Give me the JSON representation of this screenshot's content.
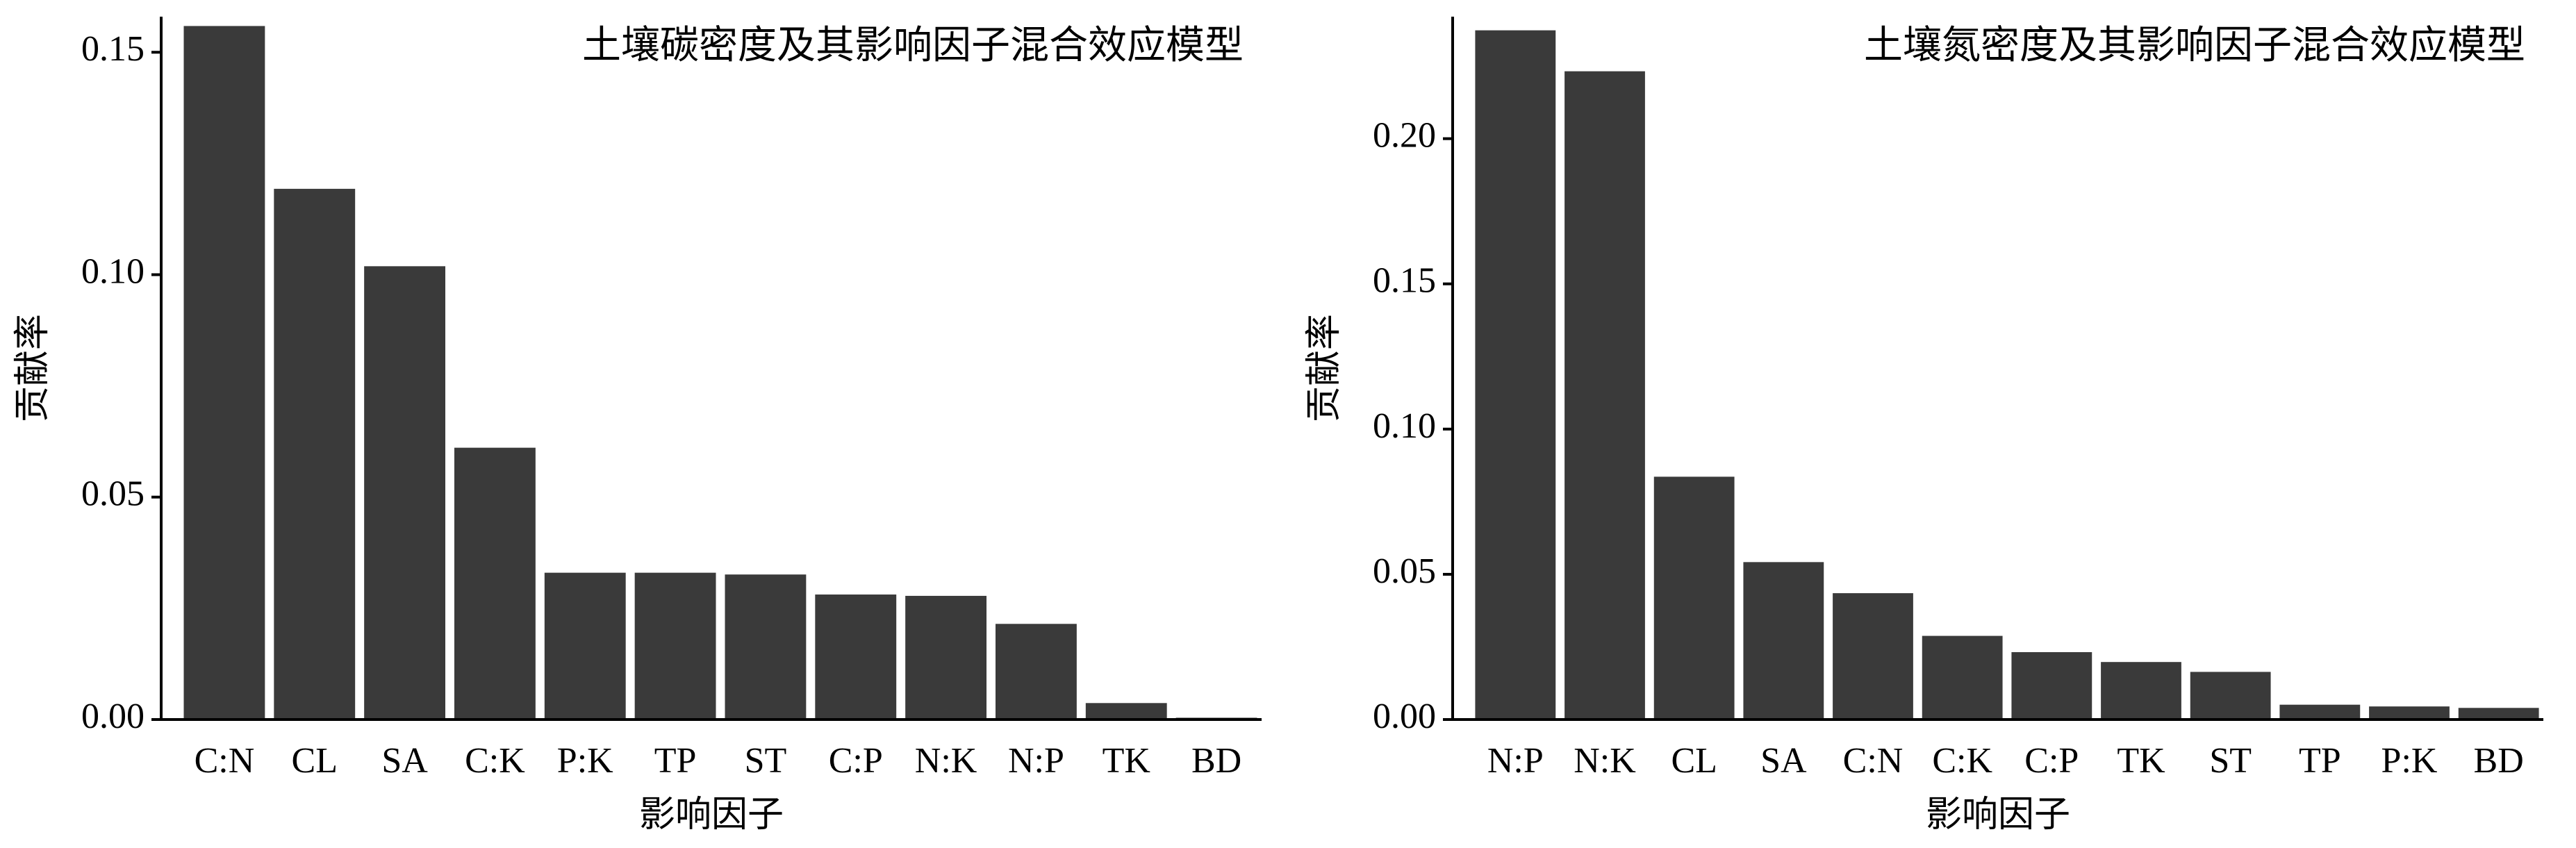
{
  "chart_data": [
    {
      "type": "bar",
      "title": "土壤碳密度及其影响因子混合效应模型",
      "x_label": "影响因子",
      "y_label": "贡献率",
      "categories": [
        "C:N",
        "CL",
        "SA",
        "C:K",
        "P:K",
        "TP",
        "ST",
        "C:P",
        "N:K",
        "N:P",
        "TK",
        "BD"
      ],
      "values": [
        0.1559,
        0.1193,
        0.1019,
        0.0611,
        0.033,
        0.033,
        0.0326,
        0.0281,
        0.0278,
        0.0215,
        0.0037,
        0.0004
      ],
      "color": "#3a3a3a",
      "ylim": [
        0,
        0.158
      ],
      "yticks": [
        {
          "value": 0,
          "label": "0.00"
        },
        {
          "value": 0.05,
          "label": "0.05"
        },
        {
          "value": 0.1,
          "label": "0.10"
        },
        {
          "value": 0.15,
          "label": "0.15"
        }
      ]
    },
    {
      "type": "bar",
      "title": "土壤氮密度及其影响因子混合效应模型",
      "x_label": "影响因子",
      "y_label": "贡献率",
      "categories": [
        "N:P",
        "N:K",
        "CL",
        "SA",
        "C:N",
        "C:K",
        "C:P",
        "TK",
        "ST",
        "TP",
        "P:K",
        "BD"
      ],
      "values": [
        0.2373,
        0.2232,
        0.0836,
        0.0542,
        0.0435,
        0.0288,
        0.0232,
        0.0198,
        0.0164,
        0.0051,
        0.0045,
        0.004
      ],
      "color": "#3a3a3a",
      "ylim": [
        0,
        0.242
      ],
      "yticks": [
        {
          "value": 0,
          "label": "0.00"
        },
        {
          "value": 0.05,
          "label": "0.05"
        },
        {
          "value": 0.1,
          "label": "0.10"
        },
        {
          "value": 0.15,
          "label": "0.15"
        },
        {
          "value": 0.2,
          "label": "0.20"
        }
      ]
    }
  ]
}
